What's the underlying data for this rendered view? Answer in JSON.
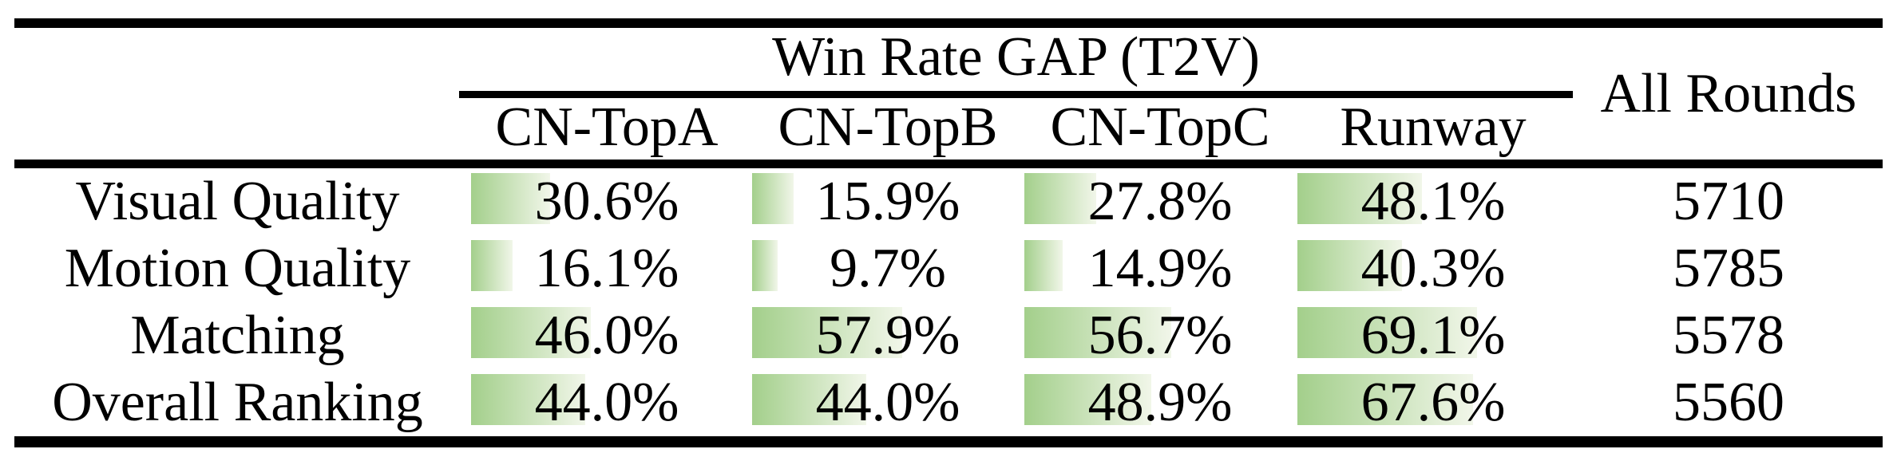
{
  "table": {
    "title": "Win Rate GAP (T2V)",
    "all_rounds_header": "All Rounds",
    "group_columns": [
      "CN-TopA",
      "CN-TopB",
      "CN-TopC",
      "Runway"
    ],
    "rows": [
      {
        "label": "Visual Quality",
        "values": [
          30.6,
          15.9,
          27.8,
          48.1
        ],
        "display": [
          "30.6%",
          "15.9%",
          "27.8%",
          "48.1%"
        ],
        "all_rounds": "5710"
      },
      {
        "label": "Motion Quality",
        "values": [
          16.1,
          9.7,
          14.9,
          40.3
        ],
        "display": [
          "16.1%",
          "9.7%",
          "14.9%",
          "40.3%"
        ],
        "all_rounds": "5785"
      },
      {
        "label": "Matching",
        "values": [
          46.0,
          57.9,
          56.7,
          69.1
        ],
        "display": [
          "46.0%",
          "57.9%",
          "56.7%",
          "69.1%"
        ],
        "all_rounds": "5578"
      },
      {
        "label": "Overall Ranking",
        "values": [
          44.0,
          44.0,
          48.9,
          67.6
        ],
        "display": [
          "44.0%",
          "44.0%",
          "48.9%",
          "67.6%"
        ],
        "all_rounds": "5560"
      }
    ]
  },
  "colors": {
    "bar_gradient_start": "#a3cf8b",
    "bar_gradient_end": "#f1f6e9",
    "rule": "#000000",
    "background": "#ffffff",
    "text": "#000000"
  },
  "chart_data": {
    "type": "table",
    "title": "Win Rate GAP (T2V)",
    "columns": [
      "CN-TopA",
      "CN-TopB",
      "CN-TopC",
      "Runway",
      "All Rounds"
    ],
    "row_labels": [
      "Visual Quality",
      "Motion Quality",
      "Matching",
      "Overall Ranking"
    ],
    "series": [
      {
        "name": "Visual Quality",
        "values": [
          30.6,
          15.9,
          27.8,
          48.1
        ],
        "all_rounds": 5710
      },
      {
        "name": "Motion Quality",
        "values": [
          16.1,
          9.7,
          14.9,
          40.3
        ],
        "all_rounds": 5785
      },
      {
        "name": "Matching",
        "values": [
          46.0,
          57.9,
          56.7,
          69.1
        ],
        "all_rounds": 5578
      },
      {
        "name": "Overall Ranking",
        "values": [
          44.0,
          44.0,
          48.9,
          67.6
        ],
        "all_rounds": 5560
      }
    ],
    "value_unit": "%",
    "bar_scale": "in-cell data bars, width proportional to percentage (100% ~ 325px)"
  }
}
